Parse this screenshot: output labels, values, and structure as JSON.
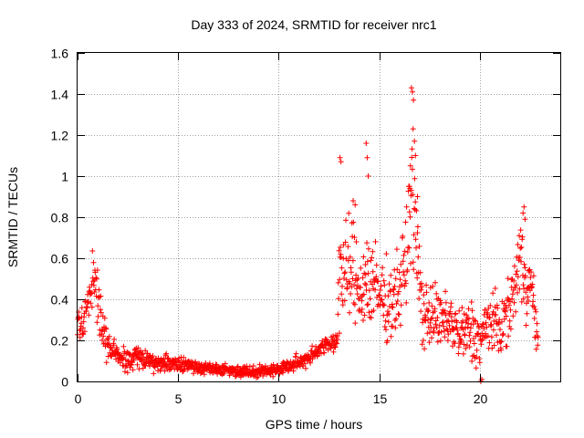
{
  "chart_data": {
    "type": "scatter",
    "title": "Day 333 of 2024, SRMTID for receiver nrc1",
    "xlabel": "GPS time / hours",
    "ylabel": "SRMTID / TECUs",
    "xlim": [
      0,
      24
    ],
    "ylim": [
      0,
      1.6
    ],
    "grid": true,
    "marker": "+",
    "xticks": [
      0,
      5,
      10,
      15,
      20
    ],
    "xtick_labels": [
      "0",
      "5",
      "10",
      "15",
      "20"
    ],
    "yticks": [
      0,
      0.2,
      0.4,
      0.6,
      0.8,
      1,
      1.2,
      1.4,
      1.6
    ],
    "ytick_labels": [
      "0",
      "0.2",
      "0.4",
      "0.6",
      "0.8",
      "1",
      "1.2",
      "1.4",
      "1.6"
    ],
    "series": [
      {
        "name": "SRMTID",
        "color": "#ff0000",
        "profile": {
          "hours": [
            0,
            0.3,
            0.6,
            0.9,
            1.2,
            1.5,
            2,
            2.5,
            3,
            3.5,
            4,
            5,
            6,
            7,
            8,
            9,
            10,
            11,
            11.5,
            12,
            12.5,
            12.9,
            13,
            13.3,
            13.6,
            14,
            14.4,
            15,
            15.5,
            16,
            16.3,
            16.6,
            16.9,
            17.2,
            17.6,
            18,
            18.5,
            19,
            19.5,
            20,
            20.5,
            21,
            21.5,
            22,
            22.3,
            22.6,
            22.9
          ],
          "level": [
            0.3,
            0.28,
            0.45,
            0.5,
            0.25,
            0.18,
            0.12,
            0.1,
            0.12,
            0.1,
            0.09,
            0.09,
            0.07,
            0.06,
            0.05,
            0.05,
            0.06,
            0.09,
            0.12,
            0.16,
            0.18,
            0.2,
            0.55,
            0.5,
            0.55,
            0.45,
            0.5,
            0.42,
            0.38,
            0.45,
            0.55,
            0.95,
            0.6,
            0.3,
            0.35,
            0.28,
            0.3,
            0.22,
            0.25,
            0.2,
            0.3,
            0.25,
            0.35,
            0.6,
            0.5,
            0.45,
            0.15
          ],
          "spread": [
            0.05,
            0.06,
            0.1,
            0.12,
            0.08,
            0.06,
            0.04,
            0.04,
            0.05,
            0.04,
            0.03,
            0.03,
            0.025,
            0.02,
            0.02,
            0.02,
            0.02,
            0.03,
            0.03,
            0.03,
            0.03,
            0.05,
            0.2,
            0.18,
            0.2,
            0.15,
            0.2,
            0.15,
            0.13,
            0.15,
            0.18,
            0.22,
            0.2,
            0.12,
            0.12,
            0.1,
            0.1,
            0.1,
            0.12,
            0.1,
            0.12,
            0.1,
            0.1,
            0.15,
            0.15,
            0.12,
            0.05
          ]
        },
        "peaks": [
          {
            "x": 13.05,
            "y": 1.09
          },
          {
            "x": 13.1,
            "y": 1.07
          },
          {
            "x": 13.7,
            "y": 0.88
          },
          {
            "x": 13.8,
            "y": 0.86
          },
          {
            "x": 14.35,
            "y": 1.16
          },
          {
            "x": 14.4,
            "y": 1.09
          },
          {
            "x": 14.45,
            "y": 1.0
          },
          {
            "x": 16.6,
            "y": 1.43
          },
          {
            "x": 16.65,
            "y": 1.41
          },
          {
            "x": 16.7,
            "y": 1.37
          },
          {
            "x": 16.68,
            "y": 1.23
          },
          {
            "x": 16.75,
            "y": 1.17
          },
          {
            "x": 16.8,
            "y": 1.1
          },
          {
            "x": 16.55,
            "y": 1.05
          },
          {
            "x": 16.5,
            "y": 0.95
          },
          {
            "x": 16.9,
            "y": 0.9
          },
          {
            "x": 22.2,
            "y": 0.85
          },
          {
            "x": 22.15,
            "y": 0.82
          },
          {
            "x": 22.25,
            "y": 0.79
          },
          {
            "x": 20.05,
            "y": 0.0
          },
          {
            "x": 20.1,
            "y": 0.01
          }
        ]
      }
    ]
  }
}
